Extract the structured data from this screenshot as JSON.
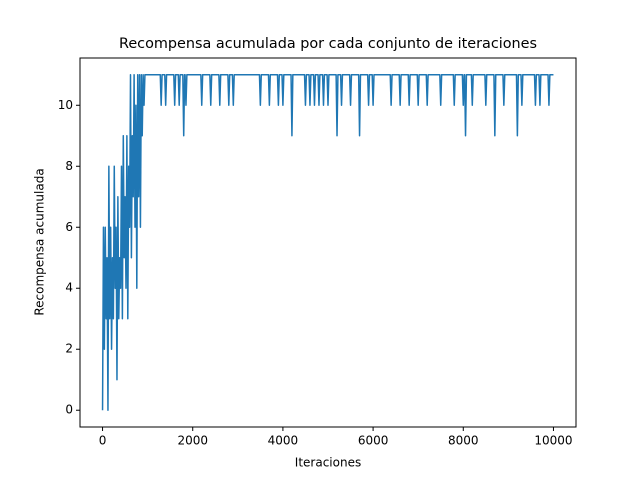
{
  "chart_data": {
    "type": "line",
    "title": "Recompensa acumulada por cada conjunto de iteraciones",
    "x_label": "Iteraciones",
    "y_label": "Recompensa acumulada",
    "xlim": [
      -500,
      10500
    ],
    "ylim": [
      -0.55,
      11.55
    ],
    "xticks": [
      0,
      2000,
      4000,
      6000,
      8000,
      10000
    ],
    "yticks": [
      0,
      2,
      4,
      6,
      8,
      10
    ],
    "grid": false,
    "series": [
      {
        "name": "Recompensa",
        "color": "#1f77b4",
        "x": [
          0,
          20,
          40,
          60,
          80,
          100,
          120,
          140,
          160,
          180,
          200,
          220,
          240,
          260,
          280,
          300,
          320,
          340,
          360,
          380,
          400,
          420,
          440,
          460,
          480,
          500,
          520,
          540,
          560,
          580,
          600,
          620,
          640,
          660,
          680,
          700,
          720,
          740,
          760,
          780,
          800,
          820,
          840,
          860,
          880,
          900,
          920,
          940,
          960,
          1280,
          1300,
          1320,
          1380,
          1400,
          1420,
          1580,
          1600,
          1620,
          1680,
          1700,
          1720,
          1780,
          1800,
          1820,
          1830,
          1850,
          1870,
          2180,
          2200,
          2220,
          2380,
          2400,
          2420,
          2580,
          2600,
          2620,
          2780,
          2800,
          2820,
          2880,
          2900,
          2920,
          3480,
          3500,
          3520,
          3680,
          3700,
          3720,
          3880,
          3900,
          3920,
          3980,
          4000,
          4020,
          4180,
          4200,
          4220,
          4480,
          4500,
          4520,
          4580,
          4600,
          4620,
          4680,
          4700,
          4720,
          4780,
          4800,
          4820,
          4880,
          4900,
          4920,
          4980,
          5000,
          5020,
          5180,
          5200,
          5220,
          5280,
          5300,
          5320,
          5480,
          5500,
          5520,
          5680,
          5700,
          5720,
          5880,
          5900,
          5920,
          5980,
          6000,
          6020,
          6380,
          6400,
          6420,
          6580,
          6600,
          6620,
          6780,
          6800,
          6820,
          6980,
          7000,
          7020,
          7180,
          7200,
          7220,
          7480,
          7500,
          7520,
          7780,
          7800,
          7820,
          7980,
          8000,
          8020,
          8030,
          8050,
          8070,
          8180,
          8200,
          8220,
          8480,
          8500,
          8520,
          8680,
          8700,
          8720,
          8880,
          8900,
          8920,
          9180,
          9200,
          9220,
          9280,
          9300,
          9320,
          9580,
          9600,
          9620,
          9680,
          9700,
          9720,
          9880,
          9900,
          9920,
          10000
        ],
        "values": [
          0,
          6,
          2,
          6,
          3,
          5,
          0,
          8,
          3,
          6,
          2,
          5,
          3,
          8,
          4,
          6,
          1,
          7,
          3,
          5,
          4,
          8,
          3,
          9,
          5,
          7,
          4,
          9,
          3,
          8,
          6,
          11,
          5,
          9,
          7,
          11,
          6,
          10,
          4,
          11,
          7,
          11,
          6,
          11,
          9,
          11,
          10,
          11,
          11,
          11,
          10,
          11,
          11,
          10,
          11,
          11,
          10,
          11,
          11,
          10,
          11,
          11,
          9,
          11,
          11,
          10,
          11,
          11,
          10,
          11,
          11,
          10,
          11,
          11,
          10,
          11,
          11,
          10,
          11,
          11,
          10,
          11,
          11,
          10,
          11,
          11,
          10,
          11,
          11,
          10,
          11,
          11,
          10,
          11,
          11,
          9,
          11,
          11,
          10,
          11,
          11,
          10,
          11,
          11,
          10,
          11,
          11,
          10,
          11,
          11,
          10,
          11,
          11,
          10,
          11,
          11,
          9,
          11,
          11,
          10,
          11,
          11,
          10,
          11,
          11,
          9,
          11,
          11,
          10,
          11,
          11,
          10,
          11,
          11,
          10,
          11,
          11,
          10,
          11,
          11,
          10,
          11,
          11,
          10,
          11,
          11,
          10,
          11,
          11,
          10,
          11,
          11,
          10,
          11,
          11,
          10,
          11,
          11,
          9,
          11,
          11,
          10,
          11,
          11,
          10,
          11,
          11,
          9,
          11,
          11,
          10,
          11,
          11,
          9,
          11,
          11,
          10,
          11,
          11,
          10,
          11,
          11,
          10,
          11,
          11,
          10,
          11,
          11
        ]
      }
    ]
  }
}
